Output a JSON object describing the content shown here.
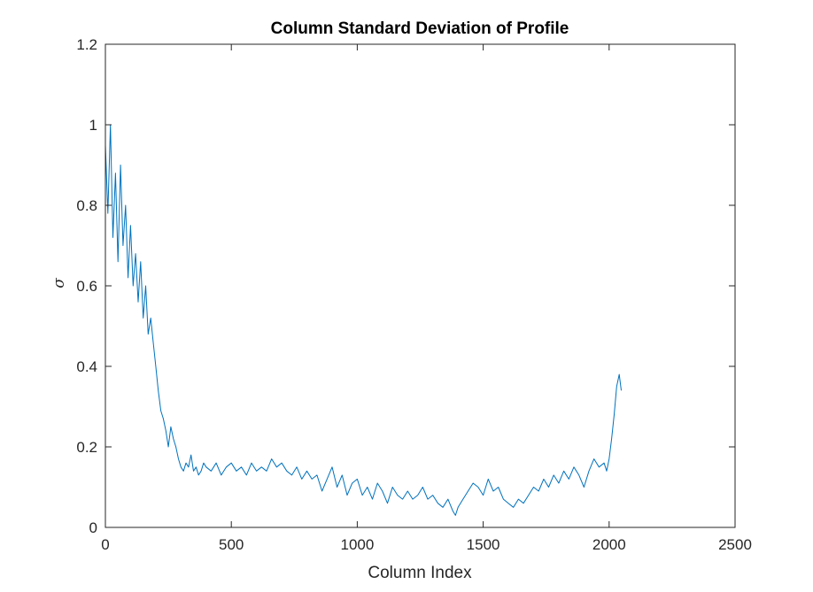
{
  "chart_data": {
    "type": "line",
    "title": "Column Standard Deviation of Profile",
    "xlabel": "Column Index",
    "ylabel": "σ",
    "xlim": [
      0,
      2500
    ],
    "ylim": [
      0,
      1.2
    ],
    "xticks": [
      0,
      500,
      1000,
      1500,
      2000,
      2500
    ],
    "yticks": [
      0,
      0.2,
      0.4,
      0.6,
      0.8,
      1,
      1.2
    ],
    "xtick_labels": [
      "0",
      "500",
      "1000",
      "1500",
      "2000",
      "2500"
    ],
    "ytick_labels": [
      "0",
      "0.2",
      "0.4",
      "0.6",
      "0.8",
      "1",
      "1.2"
    ],
    "grid": false,
    "line_color": "#0072BD",
    "axis_color": "#262626",
    "series": [
      {
        "x": [
          0,
          10,
          20,
          30,
          40,
          50,
          60,
          70,
          80,
          90,
          100,
          110,
          120,
          130,
          140,
          150,
          160,
          170,
          180,
          190,
          200,
          210,
          220,
          230,
          240,
          250,
          260,
          270,
          280,
          290,
          300,
          310,
          320,
          330,
          340,
          350,
          360,
          370,
          380,
          390,
          400,
          420,
          440,
          460,
          480,
          500,
          520,
          540,
          560,
          580,
          600,
          620,
          640,
          660,
          680,
          700,
          720,
          740,
          760,
          780,
          800,
          820,
          840,
          860,
          880,
          900,
          920,
          940,
          960,
          980,
          1000,
          1020,
          1040,
          1060,
          1080,
          1100,
          1120,
          1140,
          1160,
          1180,
          1200,
          1220,
          1240,
          1260,
          1280,
          1300,
          1320,
          1340,
          1360,
          1380,
          1390,
          1400,
          1420,
          1440,
          1460,
          1480,
          1500,
          1520,
          1540,
          1560,
          1580,
          1600,
          1620,
          1640,
          1660,
          1680,
          1700,
          1720,
          1740,
          1760,
          1780,
          1800,
          1820,
          1840,
          1860,
          1880,
          1900,
          1920,
          1940,
          1960,
          1980,
          1990,
          2000,
          2010,
          2020,
          2030,
          2040,
          2048
        ],
        "y": [
          0.95,
          0.78,
          1.0,
          0.72,
          0.88,
          0.66,
          0.9,
          0.7,
          0.8,
          0.62,
          0.75,
          0.6,
          0.68,
          0.56,
          0.66,
          0.52,
          0.6,
          0.48,
          0.52,
          0.46,
          0.4,
          0.34,
          0.29,
          0.27,
          0.24,
          0.2,
          0.25,
          0.22,
          0.2,
          0.17,
          0.15,
          0.14,
          0.16,
          0.15,
          0.18,
          0.14,
          0.15,
          0.13,
          0.14,
          0.16,
          0.15,
          0.14,
          0.16,
          0.13,
          0.15,
          0.16,
          0.14,
          0.15,
          0.13,
          0.16,
          0.14,
          0.15,
          0.14,
          0.17,
          0.15,
          0.16,
          0.14,
          0.13,
          0.15,
          0.12,
          0.14,
          0.12,
          0.13,
          0.09,
          0.12,
          0.15,
          0.1,
          0.13,
          0.08,
          0.11,
          0.12,
          0.08,
          0.1,
          0.07,
          0.11,
          0.09,
          0.06,
          0.1,
          0.08,
          0.07,
          0.09,
          0.07,
          0.08,
          0.1,
          0.07,
          0.08,
          0.06,
          0.05,
          0.07,
          0.04,
          0.03,
          0.05,
          0.07,
          0.09,
          0.11,
          0.1,
          0.08,
          0.12,
          0.09,
          0.1,
          0.07,
          0.06,
          0.05,
          0.07,
          0.06,
          0.08,
          0.1,
          0.09,
          0.12,
          0.1,
          0.13,
          0.11,
          0.14,
          0.12,
          0.15,
          0.13,
          0.1,
          0.14,
          0.17,
          0.15,
          0.16,
          0.14,
          0.17,
          0.22,
          0.28,
          0.35,
          0.38,
          0.34
        ]
      }
    ]
  }
}
